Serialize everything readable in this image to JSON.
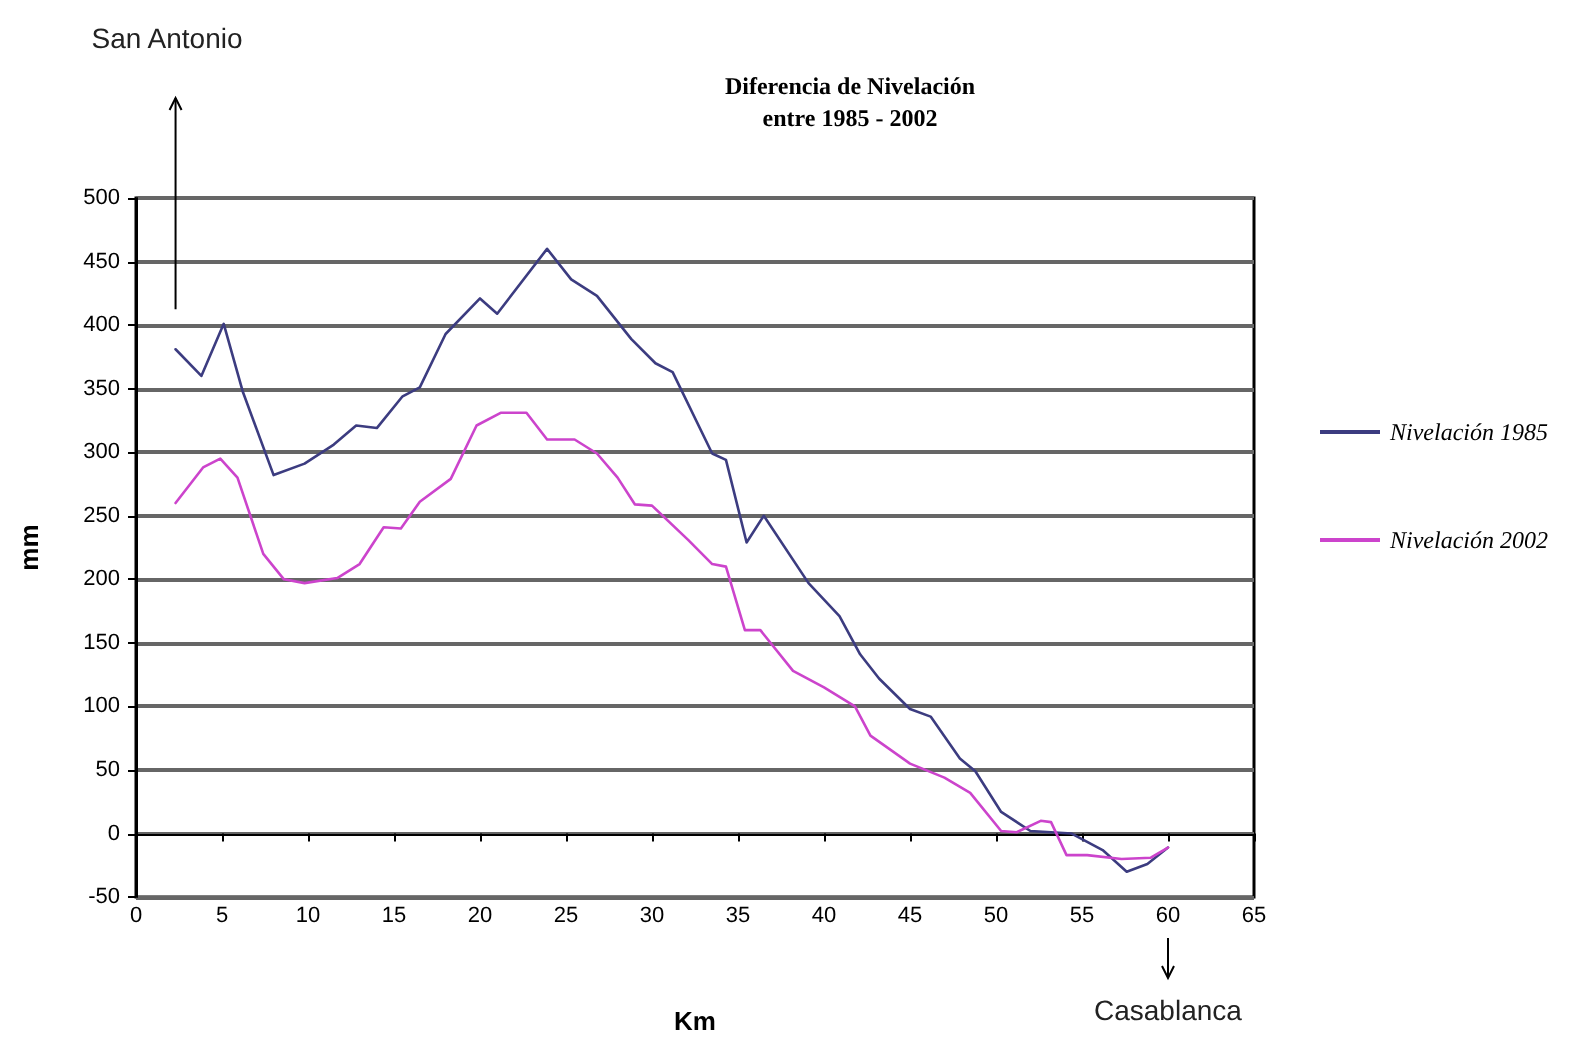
{
  "chart_data": {
    "type": "line",
    "title": "Diferencia de Nivelación\nentre 1985 - 2002",
    "xlabel": "Km",
    "ylabel": "mm",
    "annotations": [
      "San Antonio",
      "Casablanca"
    ],
    "series": [
      {
        "name": "Nivelación 1985",
        "color": "#3c3c80",
        "x": [
          2.3,
          3.8,
          5.1,
          6.2,
          8,
          9.8,
          11.5,
          12.8,
          14,
          15.5,
          16.5,
          18,
          20,
          21,
          23.9,
          25.3,
          26.8,
          28.8,
          30.2,
          31.2,
          33.5,
          34.3,
          35.5,
          36.5,
          39.1,
          40.9,
          42.1,
          43.2,
          45,
          46.2,
          47.9,
          48.8,
          50.3,
          52,
          54.4,
          56.2,
          57.6,
          58.8,
          60
        ],
        "values": [
          381,
          360,
          401,
          348,
          282,
          291,
          306,
          321,
          319,
          344,
          351,
          393,
          421,
          409,
          460,
          436,
          423,
          389,
          370,
          363,
          299,
          294,
          229,
          250,
          197,
          171,
          141,
          122,
          98,
          92,
          59,
          49,
          17,
          2,
          0,
          -13,
          -30,
          -24,
          -11
        ]
      },
      {
        "name": "Nivelación 2002",
        "color": "#cc44cc",
        "x": [
          2.3,
          3.9,
          4.9,
          5.9,
          7.4,
          8.6,
          9.8,
          11.7,
          13,
          14.4,
          15.4,
          16.5,
          18.3,
          19.8,
          21.2,
          22.7,
          23.9,
          25.5,
          26.8,
          28,
          29,
          30,
          32.1,
          33.5,
          34.3,
          35.4,
          36.3,
          38.2,
          40,
          41.8,
          42.7,
          45,
          47,
          48.5,
          50.3,
          51.2,
          52.6,
          53.2,
          54.1,
          55.3,
          57.3,
          59,
          60
        ],
        "values": [
          260,
          288,
          295,
          280,
          220,
          200,
          197,
          201,
          212,
          241,
          240,
          261,
          279,
          321,
          331,
          331,
          310,
          310,
          299,
          280,
          259,
          258,
          231,
          212,
          210,
          160,
          160,
          128,
          115,
          100,
          77,
          55,
          44,
          32,
          2,
          1,
          10,
          9,
          -17,
          -17,
          -20,
          -19,
          -11
        ]
      }
    ],
    "xlim": [
      0,
      65
    ],
    "xticks": [
      0,
      5,
      10,
      15,
      20,
      25,
      30,
      35,
      40,
      45,
      50,
      55,
      60,
      65
    ],
    "ylim": [
      -50,
      500
    ],
    "yticks": [
      -50,
      0,
      50,
      100,
      150,
      200,
      250,
      300,
      350,
      400,
      450,
      500
    ],
    "grid": "y",
    "legend": "right",
    "marker": "none",
    "line_style": "solid"
  }
}
